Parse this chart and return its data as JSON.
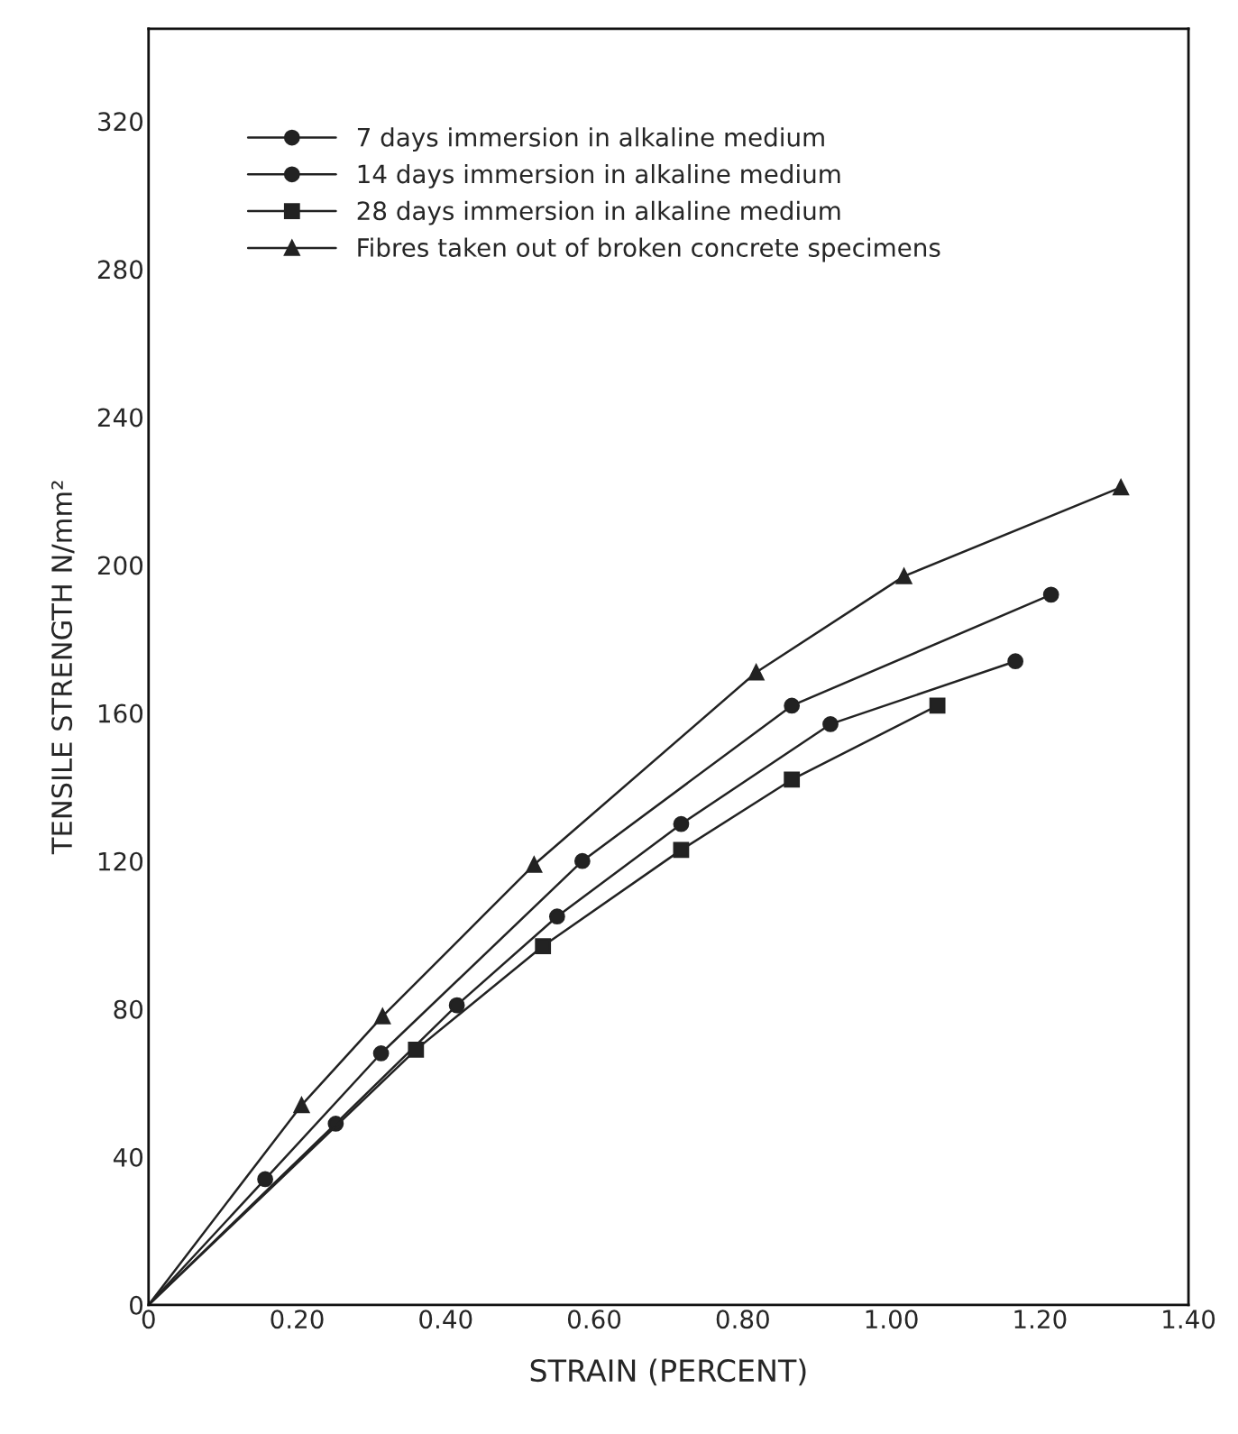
{
  "chart_data": {
    "type": "line",
    "xlabel": "STRAIN (PERCENT)",
    "ylabel": "TENSILE STRENGTH N/mm²",
    "xlim": [
      0,
      1.4
    ],
    "ylim": [
      0,
      345
    ],
    "xticks": [
      0,
      {
        "value": 0.2,
        "label": "0.20"
      },
      {
        "value": 0.4,
        "label": "0.40"
      },
      {
        "value": 0.6,
        "label": "0.60"
      },
      {
        "value": 0.8,
        "label": "0.80"
      },
      {
        "value": 1.0,
        "label": "1.00"
      },
      {
        "value": 1.2,
        "label": "1.20"
      },
      {
        "value": 1.4,
        "label": "1.40"
      }
    ],
    "yticks": [
      0,
      40,
      80,
      120,
      160,
      200,
      240,
      280,
      320
    ],
    "grid": false,
    "legend": "top left",
    "series": [
      {
        "name": "7 days immersion in alkaline medium",
        "color": "#222222",
        "marker": "circle",
        "x": [
          0,
          0.157,
          0.313,
          0.584,
          0.866,
          1.215
        ],
        "values": [
          0,
          34,
          68,
          120,
          162,
          192
        ]
      },
      {
        "name": "14 days immersion in alkaline medium",
        "color": "#222222",
        "marker": "circle",
        "x": [
          0,
          0.252,
          0.415,
          0.55,
          0.717,
          0.918,
          1.167
        ],
        "values": [
          0,
          49,
          81,
          105,
          130,
          157,
          174
        ]
      },
      {
        "name": "28 days immersion in alkaline medium",
        "color": "#222222",
        "marker": "square",
        "x": [
          0,
          0.36,
          0.531,
          0.717,
          0.866,
          1.062
        ],
        "values": [
          0,
          69,
          97,
          123,
          142,
          162
        ]
      },
      {
        "name": "Fibres taken out of broken concrete specimens",
        "color": "#222222",
        "marker": "triangle",
        "x": [
          0,
          0.206,
          0.315,
          0.519,
          0.818,
          1.017,
          1.309
        ],
        "values": [
          0,
          54,
          78,
          119,
          171,
          197,
          221
        ]
      }
    ]
  }
}
